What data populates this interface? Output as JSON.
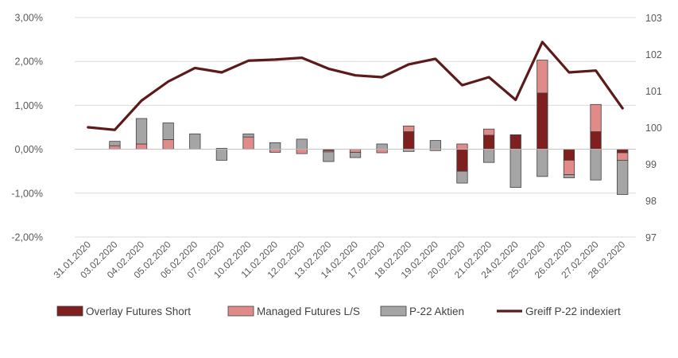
{
  "chart_data": {
    "type": "bar",
    "stacked": true,
    "categories": [
      "31.01.2020",
      "03.02.2020",
      "04.02.2020",
      "05.02.2020",
      "06.02.2020",
      "07.02.2020",
      "10.02.2020",
      "11.02.2020",
      "12.02.2020",
      "13.02.2020",
      "14.02.2020",
      "17.02.2020",
      "18.02.2020",
      "19.02.2020",
      "20.02.2020",
      "21.02.2020",
      "24.02.2020",
      "25.02.2020",
      "26.02.2020",
      "27.02.2020",
      "28.02.2020"
    ],
    "series": [
      {
        "name": "Overlay Futures Short",
        "type": "bar",
        "axis": "left",
        "color": "#7f1f1f",
        "values": [
          0,
          0,
          0,
          0,
          0,
          0,
          0,
          0,
          0,
          -0.03,
          0,
          0,
          0.4,
          0,
          -0.5,
          0.32,
          0.33,
          1.28,
          -0.25,
          0.4,
          -0.08
        ]
      },
      {
        "name": "Managed Futures L/S",
        "type": "bar",
        "axis": "left",
        "color": "#e08a8a",
        "values": [
          0,
          0.08,
          0.12,
          0.22,
          0,
          0.02,
          0.28,
          -0.07,
          -0.1,
          -0.03,
          -0.07,
          -0.08,
          0.13,
          -0.03,
          0.12,
          0.14,
          0,
          0.75,
          -0.33,
          0.62,
          -0.17
        ]
      },
      {
        "name": "P-22 Aktien",
        "type": "bar",
        "axis": "left",
        "color": "#a5a5a5",
        "values": [
          0,
          0.1,
          0.58,
          0.38,
          0.35,
          -0.25,
          0.07,
          0.15,
          0.23,
          -0.22,
          -0.12,
          0.12,
          -0.05,
          0.2,
          -0.27,
          -0.3,
          -0.87,
          -0.62,
          -0.07,
          -0.7,
          -0.78
        ]
      },
      {
        "name": "Greiff P-22 indexiert",
        "type": "line",
        "axis": "right",
        "color": "#5c1a1a",
        "values": [
          100.0,
          99.93,
          100.73,
          101.25,
          101.62,
          101.5,
          101.82,
          101.85,
          101.9,
          101.6,
          101.42,
          101.37,
          101.72,
          101.87,
          101.15,
          101.37,
          100.75,
          102.33,
          101.5,
          101.55,
          100.52
        ]
      }
    ],
    "y_left": {
      "min": -2.0,
      "max": 3.0,
      "ticks": [
        "3,00%",
        "2,00%",
        "1,00%",
        "0,00%",
        "-1,00%",
        "-2,00%"
      ],
      "tick_values": [
        3,
        2,
        1,
        0,
        -1,
        -2
      ]
    },
    "y_right": {
      "min": 97,
      "max": 103,
      "ticks": [
        "103",
        "102",
        "101",
        "100",
        "99",
        "98",
        "97"
      ],
      "tick_values": [
        103,
        102,
        101,
        100,
        99,
        98,
        97
      ]
    },
    "grid": true,
    "legend_position": "bottom",
    "title": "",
    "xlabel": "",
    "ylabel": ""
  }
}
